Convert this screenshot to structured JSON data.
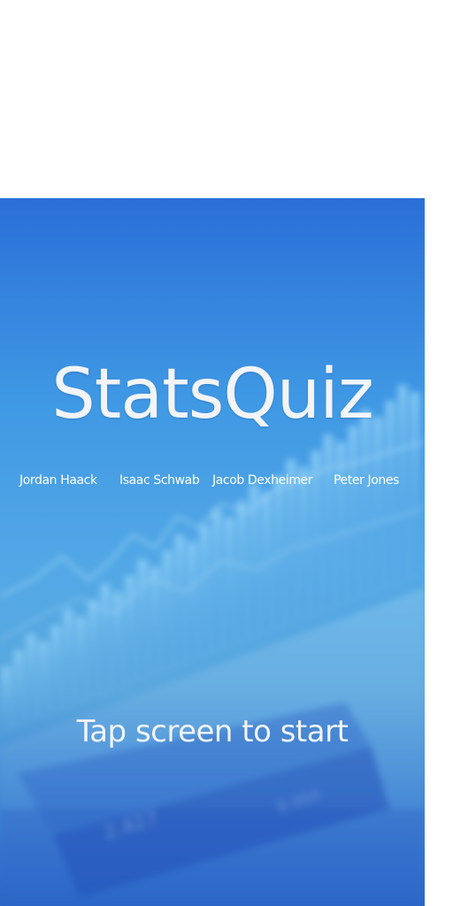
{
  "app": {
    "title": "StatsQuiz",
    "authors": [
      "Jordan Haack",
      "Isaac Schwab",
      "Jacob Dexheimer",
      "Peter Jones"
    ],
    "tap_prompt": "Tap screen to start"
  },
  "background": {
    "faint_numbers": [
      "2.427",
      "8.994"
    ]
  },
  "colors": {
    "background_top": "#2a6fd8",
    "background_mid": "#52a8e6",
    "background_bottom": "#2a66c8",
    "text": "#f2f4f7"
  }
}
